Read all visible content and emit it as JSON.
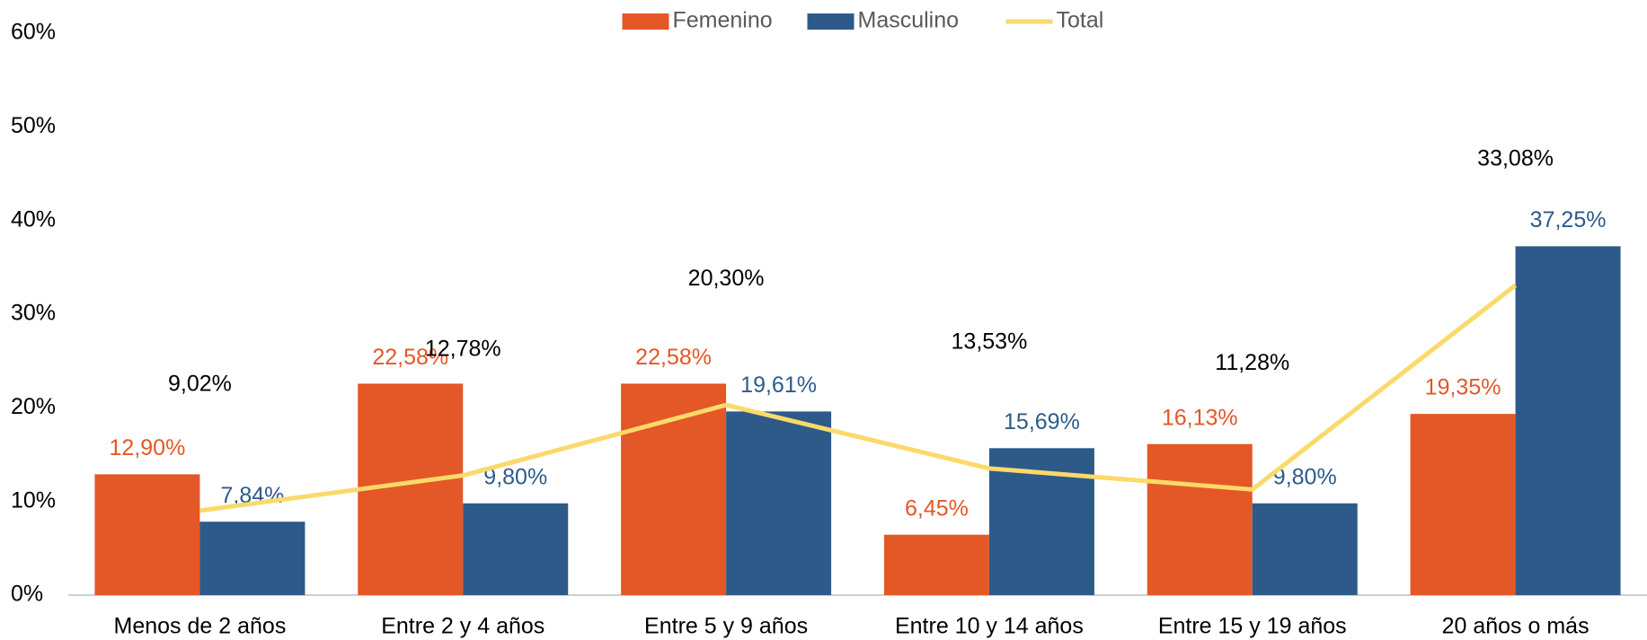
{
  "chart_data": {
    "type": "bar",
    "categories": [
      "Menos de 2 años",
      "Entre 2 y 4 años",
      "Entre 5 y 9 años",
      "Entre 10 y 14 años",
      "Entre 15 y 19 años",
      "20 años o más"
    ],
    "series": [
      {
        "name": "Femenino",
        "type": "bar",
        "color": "#e35826",
        "values": [
          12.9,
          22.58,
          22.58,
          6.45,
          16.13,
          19.35
        ],
        "value_labels": [
          "12,90%",
          "22,58%",
          "22,58%",
          "6,45%",
          "16,13%",
          "19,35%"
        ]
      },
      {
        "name": "Masculino",
        "type": "bar",
        "color": "#2e5a8a",
        "values": [
          7.84,
          9.8,
          19.61,
          15.69,
          9.8,
          37.25
        ],
        "value_labels": [
          "7,84%",
          "9,80%",
          "19,61%",
          "15,69%",
          "9,80%",
          "37,25%"
        ]
      },
      {
        "name": "Total",
        "type": "line",
        "color": "#fbd96a",
        "values": [
          9.02,
          12.78,
          20.3,
          13.53,
          11.28,
          33.08
        ],
        "value_labels": [
          "9,02%",
          "12,78%",
          "20,30%",
          "13,53%",
          "11,28%",
          "33,08%"
        ]
      }
    ],
    "ylim": [
      0,
      60
    ],
    "yticks": [
      {
        "value": 0,
        "label": "0%"
      },
      {
        "value": 10,
        "label": "10%"
      },
      {
        "value": 20,
        "label": "20%"
      },
      {
        "value": 30,
        "label": "30%"
      },
      {
        "value": 40,
        "label": "40%"
      },
      {
        "value": 50,
        "label": "50%"
      },
      {
        "value": 60,
        "label": "60%"
      }
    ],
    "grid": false,
    "legend": "top"
  }
}
